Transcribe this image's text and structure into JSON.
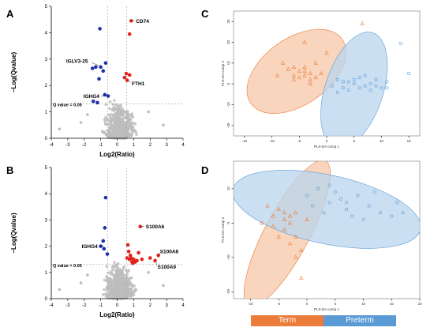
{
  "colors": {
    "up": "#e0241b",
    "down": "#1f2fa8",
    "ns": "#bdbdbd",
    "term": "#ec7c3a",
    "preterm": "#5b9bd5",
    "term_fill": "#f6c7a6",
    "preterm_fill": "#b9d4ee"
  },
  "legend": {
    "term": "Term",
    "preterm": "Preterm"
  },
  "chart_data": [
    {
      "panel": "A",
      "type": "scatter",
      "xlabel": "Log2(Ratio)",
      "ylabel": "−Log(Qvalue)",
      "xlim": [
        -4,
        4
      ],
      "ylim": [
        0,
        5
      ],
      "xticks": [
        -4,
        -3,
        -2,
        -1,
        0,
        1,
        2,
        3,
        4
      ],
      "yticks": [
        0,
        1,
        2,
        3,
        4,
        5
      ],
      "threshold_label": "Q value = 0.05",
      "threshold_y": 1.3,
      "fc_lines": [
        -0.58,
        0.58
      ],
      "up_points": [
        [
          0.85,
          4.45
        ],
        [
          0.75,
          3.95
        ],
        [
          0.55,
          2.45
        ],
        [
          0.75,
          2.4
        ],
        [
          0.45,
          2.3
        ],
        [
          0.6,
          2.2
        ]
      ],
      "down_points": [
        [
          -1.05,
          4.15
        ],
        [
          -0.7,
          2.85
        ],
        [
          -0.85,
          2.55
        ],
        [
          -1.3,
          2.7
        ],
        [
          -1.0,
          2.7
        ],
        [
          -1.5,
          2.65
        ],
        [
          -1.1,
          2.25
        ],
        [
          -0.75,
          1.65
        ],
        [
          -1.45,
          1.4
        ],
        [
          -1.2,
          1.35
        ],
        [
          -0.55,
          1.6
        ]
      ],
      "annotations": [
        {
          "text": "CD74",
          "x": 0.85,
          "y": 4.45
        },
        {
          "text": "IGLV3-25",
          "x": -1.1,
          "y": 2.75
        },
        {
          "text": "FTH1",
          "x": 0.6,
          "y": 2.2
        },
        {
          "text": "IGHG4",
          "x": -0.7,
          "y": 1.6
        }
      ]
    },
    {
      "panel": "B",
      "type": "scatter",
      "xlabel": "Log2(Ratio)",
      "ylabel": "−Log(Qvalue)",
      "xlim": [
        -4,
        4
      ],
      "ylim": [
        0,
        5
      ],
      "xticks": [
        -4,
        -3,
        -2,
        -1,
        0,
        1,
        2,
        3,
        4
      ],
      "yticks": [
        0,
        1,
        2,
        3,
        4,
        5
      ],
      "threshold_label": "Q value = 0.05",
      "threshold_y": 1.3,
      "fc_lines": [
        -0.58,
        0.58
      ],
      "up_points": [
        [
          1.4,
          2.75
        ],
        [
          2.5,
          1.65
        ],
        [
          2.3,
          1.45
        ],
        [
          0.6,
          1.55
        ],
        [
          0.75,
          1.5
        ],
        [
          0.9,
          1.4
        ],
        [
          1.0,
          1.5
        ],
        [
          0.85,
          1.55
        ],
        [
          1.2,
          1.45
        ],
        [
          0.7,
          1.8
        ],
        [
          0.65,
          2.05
        ],
        [
          1.3,
          1.75
        ],
        [
          0.95,
          1.35
        ],
        [
          1.1,
          1.4
        ],
        [
          0.8,
          1.65
        ],
        [
          1.5,
          1.5
        ],
        [
          2.0,
          1.55
        ]
      ],
      "down_points": [
        [
          -0.7,
          3.85
        ],
        [
          -0.75,
          2.7
        ],
        [
          -0.85,
          2.2
        ],
        [
          -0.8,
          1.9
        ],
        [
          -1.0,
          2.0
        ],
        [
          -0.6,
          1.7
        ]
      ],
      "annotations": [
        {
          "text": "S100A6",
          "x": 1.45,
          "y": 2.75
        },
        {
          "text": "IGHG4",
          "x": -0.8,
          "y": 2.0
        },
        {
          "text": "S100A8",
          "x": 2.5,
          "y": 1.65
        },
        {
          "text": "S100A9",
          "x": 2.35,
          "y": 1.4
        }
      ]
    },
    {
      "panel": "C",
      "type": "scatter",
      "xlabel": "PLS-DA comp 1",
      "ylabel": "PLS-DA comp 2",
      "xlim": [
        -17,
        17
      ],
      "ylim": [
        -25,
        35
      ],
      "xticks": [
        -15,
        -10,
        -5,
        0,
        5,
        10,
        15
      ],
      "yticks": [
        -20,
        -10,
        0,
        10,
        20,
        30
      ],
      "ellipses": [
        {
          "group": "term",
          "cx": -5.5,
          "cy": 6,
          "rx": 10.2,
          "ry": 16,
          "angle": 35
        },
        {
          "group": "preterm",
          "cx": 5,
          "cy": -3,
          "rx": 11,
          "ry": 14,
          "angle": 72
        }
      ],
      "term_points": [
        [
          -4,
          20
        ],
        [
          -8,
          10
        ],
        [
          -7,
          7
        ],
        [
          -6,
          4
        ],
        [
          -5,
          6
        ],
        [
          -4,
          8
        ],
        [
          -3,
          5
        ],
        [
          -3,
          2
        ],
        [
          -2,
          10
        ],
        [
          -5,
          3
        ],
        [
          -6,
          8
        ],
        [
          -4,
          4
        ],
        [
          -2,
          3
        ],
        [
          0,
          15
        ],
        [
          -1,
          5
        ],
        [
          -3,
          0
        ],
        [
          -9,
          4
        ],
        [
          -4,
          6
        ],
        [
          6.5,
          29
        ],
        [
          -6,
          2
        ]
      ],
      "preterm_points": [
        [
          1,
          -1
        ],
        [
          2,
          2
        ],
        [
          3,
          -2
        ],
        [
          4,
          1
        ],
        [
          5,
          0
        ],
        [
          6,
          3
        ],
        [
          7,
          -1
        ],
        [
          8,
          0
        ],
        [
          9,
          2
        ],
        [
          10,
          -2
        ],
        [
          11,
          1
        ],
        [
          4,
          -3
        ],
        [
          6,
          -2
        ],
        [
          2,
          -4
        ],
        [
          13.5,
          19.5
        ],
        [
          15,
          5
        ],
        [
          3,
          1
        ],
        [
          8,
          -3
        ],
        [
          5,
          2
        ],
        [
          7,
          4
        ],
        [
          11,
          -2
        ],
        [
          9,
          -1
        ]
      ]
    },
    {
      "panel": "D",
      "type": "scatter",
      "xlabel": "PLS-DA comp 1",
      "ylabel": "PLS-DA comp 2",
      "xlim": [
        -13,
        20
      ],
      "ylim": [
        -22,
        18
      ],
      "xticks": [
        -10,
        -5,
        0,
        5,
        10,
        15,
        20
      ],
      "yticks": [
        -20,
        -10,
        0,
        10
      ],
      "ellipses": [
        {
          "group": "term",
          "cx": -3.5,
          "cy": -3,
          "rx": 14.5,
          "ry": 6.5,
          "angle": 62
        },
        {
          "group": "preterm",
          "cx": 3.5,
          "cy": 4,
          "rx": 17,
          "ry": 10,
          "angle": -12
        }
      ],
      "term_points": [
        [
          -5,
          4
        ],
        [
          -6,
          2
        ],
        [
          -4,
          1
        ],
        [
          -3,
          0
        ],
        [
          -2,
          3
        ],
        [
          -4,
          -2
        ],
        [
          -5,
          -4
        ],
        [
          -3,
          -6
        ],
        [
          -1,
          -8
        ],
        [
          -2,
          -4
        ],
        [
          -6,
          -1
        ],
        [
          -1,
          -16
        ],
        [
          0,
          1
        ],
        [
          -7,
          5
        ],
        [
          -3,
          2
        ],
        [
          -8,
          0
        ],
        [
          -2,
          -10
        ],
        [
          -4,
          3
        ]
      ],
      "preterm_points": [
        [
          0,
          8
        ],
        [
          2,
          10
        ],
        [
          4,
          6
        ],
        [
          5,
          9
        ],
        [
          7,
          4
        ],
        [
          9,
          8
        ],
        [
          11,
          5
        ],
        [
          13,
          3
        ],
        [
          15,
          2
        ],
        [
          3,
          3
        ],
        [
          6,
          7
        ],
        [
          8,
          2
        ],
        [
          12,
          9
        ],
        [
          16,
          6
        ],
        [
          1,
          5
        ],
        [
          10,
          1
        ],
        [
          4,
          11
        ],
        [
          7,
          6
        ],
        [
          17,
          3
        ]
      ]
    }
  ]
}
